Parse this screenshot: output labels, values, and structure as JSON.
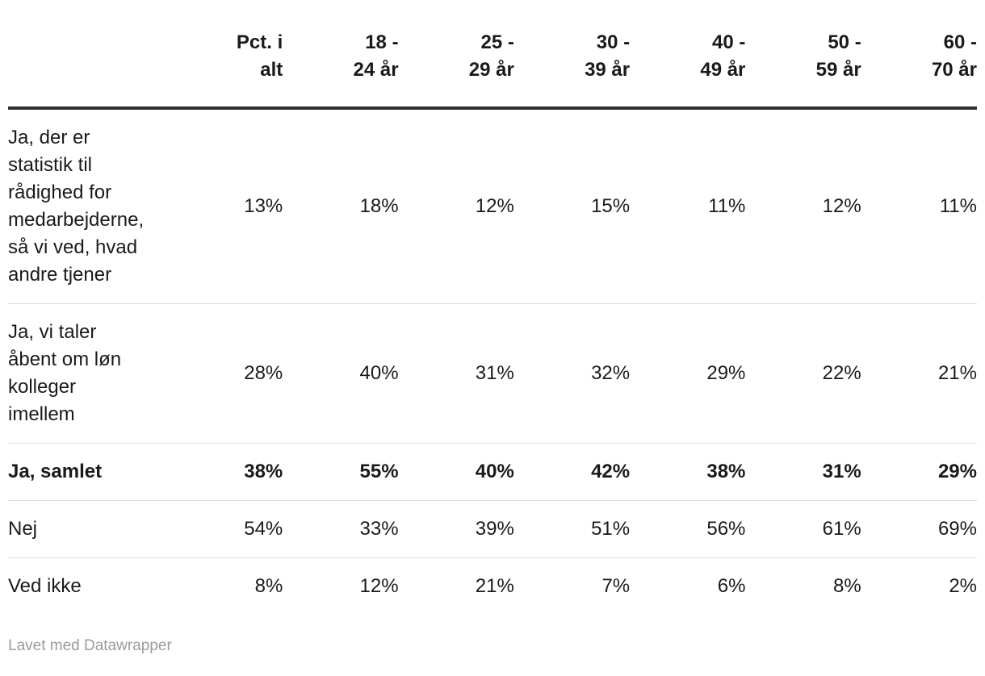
{
  "table": {
    "headers": [
      "Pct. i\nalt",
      "18 -\n24 år",
      "25 -\n29 år",
      "30 -\n39 år",
      "40 -\n49 år",
      "50 -\n59 år",
      "60 -\n70 år"
    ],
    "rows": [
      {
        "label": "Ja, der er\nstatistik til\nrådighed for\nmedarbejderne,\nså vi ved, hvad\nandre tjener",
        "values": [
          "13%",
          "18%",
          "12%",
          "15%",
          "11%",
          "12%",
          "11%"
        ]
      },
      {
        "label": "Ja, vi taler\nåbent om løn\nkolleger\nimellem",
        "values": [
          "28%",
          "40%",
          "31%",
          "32%",
          "29%",
          "22%",
          "21%"
        ]
      },
      {
        "label": "Ja, samlet",
        "values": [
          "38%",
          "55%",
          "40%",
          "42%",
          "38%",
          "31%",
          "29%"
        ]
      },
      {
        "label": "Nej",
        "values": [
          "54%",
          "33%",
          "39%",
          "51%",
          "56%",
          "61%",
          "69%"
        ]
      },
      {
        "label": "Ved ikke",
        "values": [
          "8%",
          "12%",
          "21%",
          "7%",
          "6%",
          "8%",
          "2%"
        ]
      }
    ]
  },
  "footer": {
    "attribution": "Lavet med Datawrapper"
  },
  "colors": {
    "text": "#1a1a1a",
    "header_rule": "#2e2e2e",
    "row_divider": "#dddddd",
    "attribution_text": "#9c9c9c"
  },
  "chart_data": {
    "type": "table",
    "columns": [
      "",
      "Pct. i alt",
      "18 - 24 år",
      "25 - 29 år",
      "30 - 39 år",
      "40 - 49 år",
      "50 - 59 år",
      "60 - 70 år"
    ],
    "rows": [
      {
        "label": "Ja, der er statistik til rådighed for medarbejderne, så vi ved, hvad andre tjener",
        "values_pct": [
          13,
          18,
          12,
          15,
          11,
          12,
          11
        ],
        "bold": false
      },
      {
        "label": "Ja, vi taler åbent om løn kolleger imellem",
        "values_pct": [
          28,
          40,
          31,
          32,
          29,
          22,
          21
        ],
        "bold": false
      },
      {
        "label": "Ja, samlet",
        "values_pct": [
          38,
          55,
          40,
          42,
          38,
          31,
          29
        ],
        "bold": true
      },
      {
        "label": "Nej",
        "values_pct": [
          54,
          33,
          39,
          51,
          56,
          61,
          69
        ],
        "bold": false
      },
      {
        "label": "Ved ikke",
        "values_pct": [
          8,
          12,
          21,
          7,
          6,
          8,
          2
        ],
        "bold": false
      }
    ],
    "legend_position": "none",
    "grid": "horizontal-dividers",
    "attribution": "Lavet med Datawrapper"
  }
}
